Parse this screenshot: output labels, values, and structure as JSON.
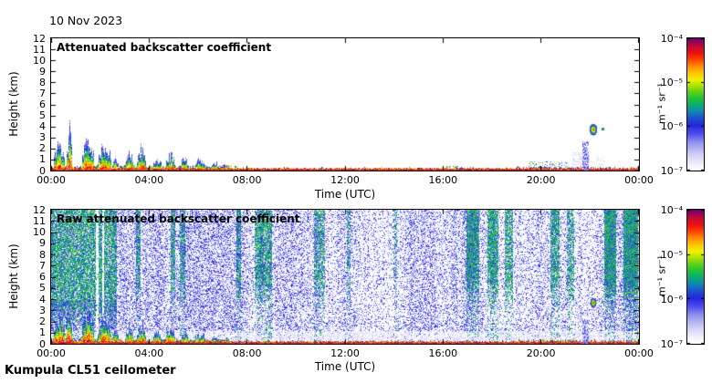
{
  "figure": {
    "date_label": "10 Nov 2023",
    "footer": "Kumpula CL51 ceilometer",
    "background": "#ffffff"
  },
  "axes": {
    "x_label": "Time (UTC)",
    "y_label": "Height (km)",
    "x_ticks": [
      "00:00",
      "04:00",
      "08:00",
      "12:00",
      "16:00",
      "20:00",
      "00:00"
    ],
    "y_ticks": [
      "0",
      "1",
      "2",
      "3",
      "4",
      "5",
      "6",
      "7",
      "8",
      "9",
      "10",
      "11",
      "12"
    ],
    "x_range_hours": [
      0,
      24
    ],
    "y_range_km": [
      0,
      12
    ]
  },
  "colorbar": {
    "tick_labels": [
      "10⁻⁴",
      "10⁻⁵",
      "10⁻⁶",
      "10⁻⁷"
    ],
    "unit_label": "m⁻¹ sr⁻¹",
    "scale": "log",
    "range": [
      "1e-7",
      "1e-4"
    ],
    "colormap": [
      [
        0.0,
        "#ffffff"
      ],
      [
        0.05,
        "#efeffc"
      ],
      [
        0.13,
        "#c9c9f5"
      ],
      [
        0.21,
        "#9292ef"
      ],
      [
        0.28,
        "#4b4bee"
      ],
      [
        0.34,
        "#2525dd"
      ],
      [
        0.4,
        "#1a56cf"
      ],
      [
        0.45,
        "#0d8cb0"
      ],
      [
        0.5,
        "#08b070"
      ],
      [
        0.55,
        "#25c434"
      ],
      [
        0.6,
        "#66d414"
      ],
      [
        0.65,
        "#b8e400"
      ],
      [
        0.69,
        "#f2f200"
      ],
      [
        0.74,
        "#ffc400"
      ],
      [
        0.79,
        "#ff8c00"
      ],
      [
        0.84,
        "#ff4500"
      ],
      [
        0.89,
        "#ed1111"
      ],
      [
        0.94,
        "#c40a35"
      ],
      [
        1.0,
        "#70006e"
      ]
    ]
  },
  "chart_data": [
    {
      "type": "heatmap",
      "title": "Attenuated backscatter coefficient",
      "xlabel": "Time (UTC)",
      "ylabel": "Height (km)",
      "xlim_hours": [
        0,
        24
      ],
      "ylim_km": [
        0,
        12
      ],
      "colorbar_unit": "m⁻¹ sr⁻¹",
      "colorbar_ticks": [
        "10⁻⁴",
        "10⁻⁵",
        "10⁻⁶",
        "10⁻⁷"
      ],
      "features": {
        "surface_layers": [
          [
            0,
            7,
            0.3
          ],
          [
            7,
            19,
            0.16
          ],
          [
            19,
            22.3,
            0.22
          ],
          [
            22.3,
            24,
            0.18
          ]
        ],
        "plumes": [
          [
            0.1,
            0.55,
            2.6
          ],
          [
            0.6,
            0.85,
            3.3
          ],
          [
            1.25,
            1.75,
            3.0
          ],
          [
            1.9,
            2.45,
            2.4
          ],
          [
            2.5,
            2.75,
            1.2
          ],
          [
            3.0,
            3.35,
            1.6
          ],
          [
            3.5,
            3.85,
            1.9
          ],
          [
            4.15,
            4.5,
            1.3
          ],
          [
            4.65,
            5.05,
            1.5
          ],
          [
            5.3,
            5.6,
            1.1
          ],
          [
            5.85,
            6.3,
            1.0
          ],
          [
            6.5,
            6.8,
            0.7
          ],
          [
            6.9,
            7.3,
            0.5
          ]
        ],
        "speckle_patches": [
          [
            6.8,
            7.6,
            0.45,
            0.3
          ],
          [
            16.1,
            16.6,
            0.4,
            0.22
          ],
          [
            19.5,
            21.0,
            0.8,
            0.2
          ]
        ],
        "gray_streaks": [
          [
            20.85,
            21.1,
            0.9,
            0.3
          ],
          [
            21.3,
            21.95,
            1.7,
            0.5
          ],
          [
            22.3,
            22.55,
            1.3,
            0.3
          ]
        ],
        "blue_column": [
          21.7,
          21.88,
          2.6
        ],
        "cloud": {
          "time_h": 22.12,
          "height_km": 3.75,
          "half_width_h": 0.16,
          "half_depth_km": 0.55
        },
        "cloud_dot": {
          "time_h": 22.5,
          "height_km": 3.8,
          "half_width_h": 0.06,
          "half_depth_km": 0.15
        }
      }
    },
    {
      "type": "heatmap",
      "title": "Raw attenuated backscatter coefficient",
      "xlabel": "Time (UTC)",
      "ylabel": "Height (km)",
      "xlim_hours": [
        0,
        24
      ],
      "ylim_km": [
        0,
        12
      ],
      "colorbar_unit": "m⁻¹ sr⁻¹",
      "colorbar_ticks": [
        "10⁻⁴",
        "10⁻⁵",
        "10⁻⁶",
        "10⁻⁷"
      ],
      "features": {
        "noise": {
          "blue_p": 0.3,
          "lavender_p": 0.26
        },
        "green_region": [
          0,
          2.65
        ],
        "white_gaps": [
          [
            1.82,
            1.92
          ],
          [
            2.05,
            2.15
          ]
        ],
        "green_streaks": [
          [
            3.45,
            3.65,
            0.5
          ],
          [
            4.85,
            5.05,
            0.55
          ],
          [
            5.25,
            5.45,
            0.5
          ],
          [
            7.55,
            7.75,
            0.55
          ],
          [
            8.3,
            9.0,
            0.6
          ],
          [
            10.7,
            11.15,
            0.45
          ],
          [
            12.05,
            12.2,
            0.3
          ],
          [
            13.95,
            14.1,
            0.3
          ],
          [
            16.95,
            17.45,
            0.65
          ],
          [
            17.8,
            18.25,
            0.7
          ],
          [
            18.5,
            18.85,
            0.6
          ],
          [
            20.35,
            20.75,
            0.6
          ],
          [
            21.05,
            21.35,
            0.5
          ],
          [
            22.55,
            23.05,
            0.75
          ],
          [
            23.35,
            23.95,
            0.8
          ]
        ],
        "clear_band_km": [
          0.28,
          1.15
        ],
        "surface_layers": [
          [
            0,
            7,
            0.3
          ],
          [
            7,
            19,
            0.16
          ],
          [
            19,
            22.3,
            0.22
          ],
          [
            22.3,
            24,
            0.18
          ]
        ],
        "plumes": [
          [
            0.1,
            0.55,
            2.6
          ],
          [
            0.6,
            0.85,
            3.3
          ],
          [
            1.25,
            1.75,
            3.0
          ],
          [
            1.9,
            2.45,
            2.4
          ],
          [
            2.5,
            2.75,
            1.2
          ],
          [
            3.0,
            3.35,
            1.6
          ],
          [
            3.5,
            3.85,
            1.9
          ],
          [
            4.15,
            4.5,
            1.3
          ],
          [
            4.65,
            5.05,
            1.5
          ],
          [
            5.3,
            5.6,
            1.1
          ],
          [
            5.85,
            6.3,
            1.0
          ],
          [
            6.5,
            6.8,
            0.7
          ],
          [
            6.9,
            7.3,
            0.5
          ]
        ],
        "blue_column": [
          21.7,
          21.88,
          2.2
        ],
        "cloud": {
          "time_h": 22.12,
          "height_km": 3.7,
          "half_width_h": 0.13,
          "half_depth_km": 0.45
        },
        "cloud_dot": {
          "time_h": 22.5,
          "height_km": 3.8,
          "half_width_h": 0.05,
          "half_depth_km": 0.12
        }
      }
    }
  ]
}
